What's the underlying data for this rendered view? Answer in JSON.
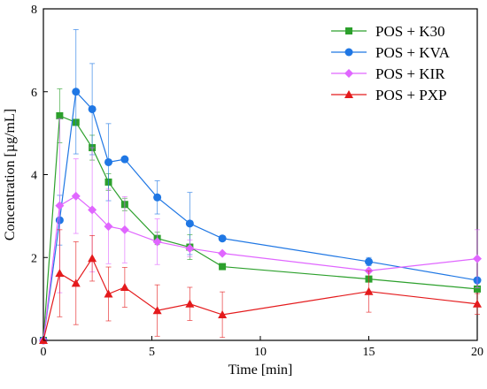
{
  "chart_data": {
    "type": "line",
    "title": "",
    "xlabel": "Time [min]",
    "ylabel": "Concentration [µg/mL]",
    "xlim": [
      0,
      20
    ],
    "ylim": [
      0,
      8
    ],
    "xticks": [
      0,
      5,
      10,
      15,
      20
    ],
    "yticks": [
      0,
      2,
      4,
      6,
      8
    ],
    "grid": false,
    "legend_position": "top-right",
    "series": [
      {
        "name": "POS + K30",
        "color": "#2ca02c",
        "marker": "square",
        "x": [
          0,
          0.75,
          1.5,
          2.25,
          3,
          3.75,
          5.25,
          6.75,
          8.25,
          15,
          20
        ],
        "y": [
          0,
          5.42,
          5.26,
          4.65,
          3.82,
          3.28,
          2.46,
          2.25,
          1.78,
          1.48,
          1.24
        ],
        "err": [
          0,
          0.65,
          0,
          0.3,
          0.2,
          0.15,
          0.15,
          0.3,
          0,
          0,
          0
        ]
      },
      {
        "name": "POS + KVA",
        "color": "#1f77e4",
        "marker": "circle",
        "x": [
          0,
          0.75,
          1.5,
          2.25,
          3,
          3.75,
          5.25,
          6.75,
          8.25,
          15,
          20
        ],
        "y": [
          0,
          2.9,
          6.0,
          5.58,
          4.3,
          4.37,
          3.45,
          2.82,
          2.46,
          1.9,
          1.45
        ],
        "err": [
          0,
          0.6,
          1.5,
          1.1,
          0.93,
          0,
          0.4,
          0.75,
          0,
          0.1,
          0
        ]
      },
      {
        "name": "POS + KIR",
        "color": "#e066ff",
        "marker": "diamond",
        "x": [
          0,
          0.75,
          1.5,
          2.25,
          3,
          3.75,
          5.25,
          6.75,
          8.25,
          15,
          20
        ],
        "y": [
          0,
          3.25,
          3.48,
          3.15,
          2.75,
          2.67,
          2.38,
          2.22,
          2.1,
          1.68,
          1.97
        ],
        "err": [
          0,
          2.1,
          0.9,
          1.5,
          0.9,
          0.8,
          0.55,
          0.2,
          0,
          0,
          0.7
        ]
      },
      {
        "name": "POS + PXP",
        "color": "#e41a1c",
        "marker": "triangle",
        "x": [
          0,
          0.75,
          1.5,
          2.25,
          3,
          3.75,
          5.25,
          6.75,
          8.25,
          15,
          20
        ],
        "y": [
          0,
          1.62,
          1.38,
          1.98,
          1.12,
          1.28,
          0.72,
          0.88,
          0.62,
          1.18,
          0.88
        ],
        "err": [
          0,
          1.05,
          1.0,
          0.55,
          0.65,
          0.48,
          0.62,
          0.4,
          0.55,
          0.5,
          0.25
        ]
      }
    ]
  }
}
